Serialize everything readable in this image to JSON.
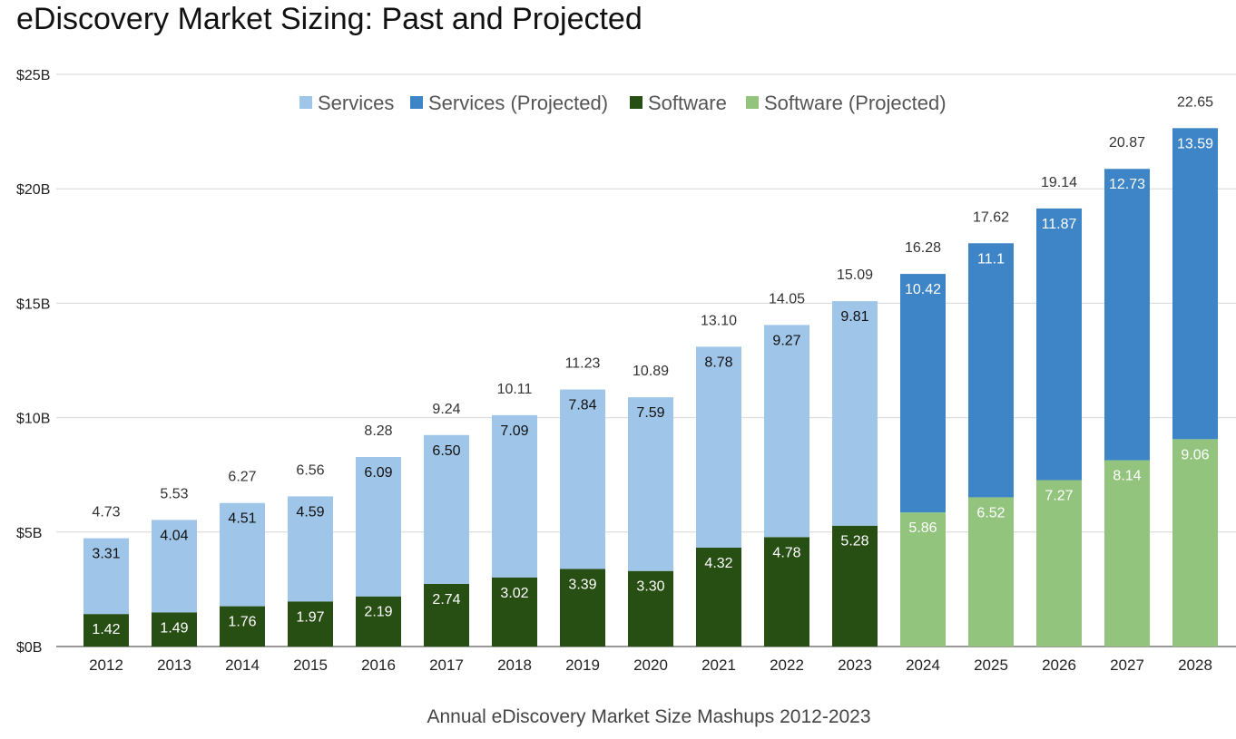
{
  "chart_data": {
    "type": "stacked-bar",
    "title": "eDiscovery Market Sizing: Past and Projected",
    "xlabel": "Annual eDiscovery Market Size Mashups 2012-2023",
    "ylabel": "",
    "ylim": [
      0,
      25
    ],
    "yticks": [
      {
        "value": 0,
        "label": "$0B"
      },
      {
        "value": 5,
        "label": "$5B"
      },
      {
        "value": 10,
        "label": "$10B"
      },
      {
        "value": 15,
        "label": "$15B"
      },
      {
        "value": 20,
        "label": "$20B"
      },
      {
        "value": 25,
        "label": "$25B"
      }
    ],
    "legend_position": "top-center",
    "legend": [
      {
        "name": "Services",
        "color": "#9fc5e8"
      },
      {
        "name": "Services (Projected)",
        "color": "#3d85c6"
      },
      {
        "name": "Software",
        "color": "#274e13"
      },
      {
        "name": "Software (Projected)",
        "color": "#93c47d"
      }
    ],
    "categories": [
      "2012",
      "2013",
      "2014",
      "2015",
      "2016",
      "2017",
      "2018",
      "2019",
      "2020",
      "2021",
      "2022",
      "2023",
      "2024",
      "2025",
      "2026",
      "2027",
      "2028"
    ],
    "series": [
      {
        "name": "Software",
        "color": "#274e13",
        "label_color": "#ffffff",
        "values": [
          1.42,
          1.49,
          1.76,
          1.97,
          2.19,
          2.74,
          3.02,
          3.39,
          3.3,
          4.32,
          4.78,
          5.28,
          null,
          null,
          null,
          null,
          null
        ],
        "labels": [
          "1.42",
          "1.49",
          "1.76",
          "1.97",
          "2.19",
          "2.74",
          "3.02",
          "3.39",
          "3.30",
          "4.32",
          "4.78",
          "5.28",
          null,
          null,
          null,
          null,
          null
        ]
      },
      {
        "name": "Software (Projected)",
        "color": "#93c47d",
        "label_color": "#ffffff",
        "values": [
          null,
          null,
          null,
          null,
          null,
          null,
          null,
          null,
          null,
          null,
          null,
          null,
          5.86,
          6.52,
          7.27,
          8.14,
          9.06
        ],
        "labels": [
          null,
          null,
          null,
          null,
          null,
          null,
          null,
          null,
          null,
          null,
          null,
          null,
          "5.86",
          "6.52",
          "7.27",
          "8.14",
          "9.06"
        ]
      },
      {
        "name": "Services",
        "color": "#9fc5e8",
        "label_color": "#111111",
        "values": [
          3.31,
          4.04,
          4.51,
          4.59,
          6.09,
          6.5,
          7.09,
          7.84,
          7.59,
          8.78,
          9.27,
          9.81,
          null,
          null,
          null,
          null,
          null
        ],
        "labels": [
          "3.31",
          "4.04",
          "4.51",
          "4.59",
          "6.09",
          "6.50",
          "7.09",
          "7.84",
          "7.59",
          "8.78",
          "9.27",
          "9.81",
          null,
          null,
          null,
          null,
          null
        ]
      },
      {
        "name": "Services (Projected)",
        "color": "#3d85c6",
        "label_color": "#ffffff",
        "values": [
          null,
          null,
          null,
          null,
          null,
          null,
          null,
          null,
          null,
          null,
          null,
          null,
          10.42,
          11.1,
          11.87,
          12.73,
          13.59
        ],
        "labels": [
          null,
          null,
          null,
          null,
          null,
          null,
          null,
          null,
          null,
          null,
          null,
          null,
          "10.42",
          "11.1",
          "11.87",
          "12.73",
          "13.59"
        ]
      }
    ],
    "totals": [
      "4.73",
      "5.53",
      "6.27",
      "6.56",
      "8.28",
      "9.24",
      "10.11",
      "11.23",
      "10.89",
      "13.10",
      "14.05",
      "15.09",
      "16.28",
      "17.62",
      "19.14",
      "20.87",
      "22.65"
    ],
    "total_values": [
      4.73,
      5.53,
      6.27,
      6.56,
      8.28,
      9.24,
      10.11,
      11.23,
      10.89,
      13.1,
      14.05,
      15.09,
      16.28,
      17.62,
      19.14,
      20.87,
      22.65
    ]
  }
}
